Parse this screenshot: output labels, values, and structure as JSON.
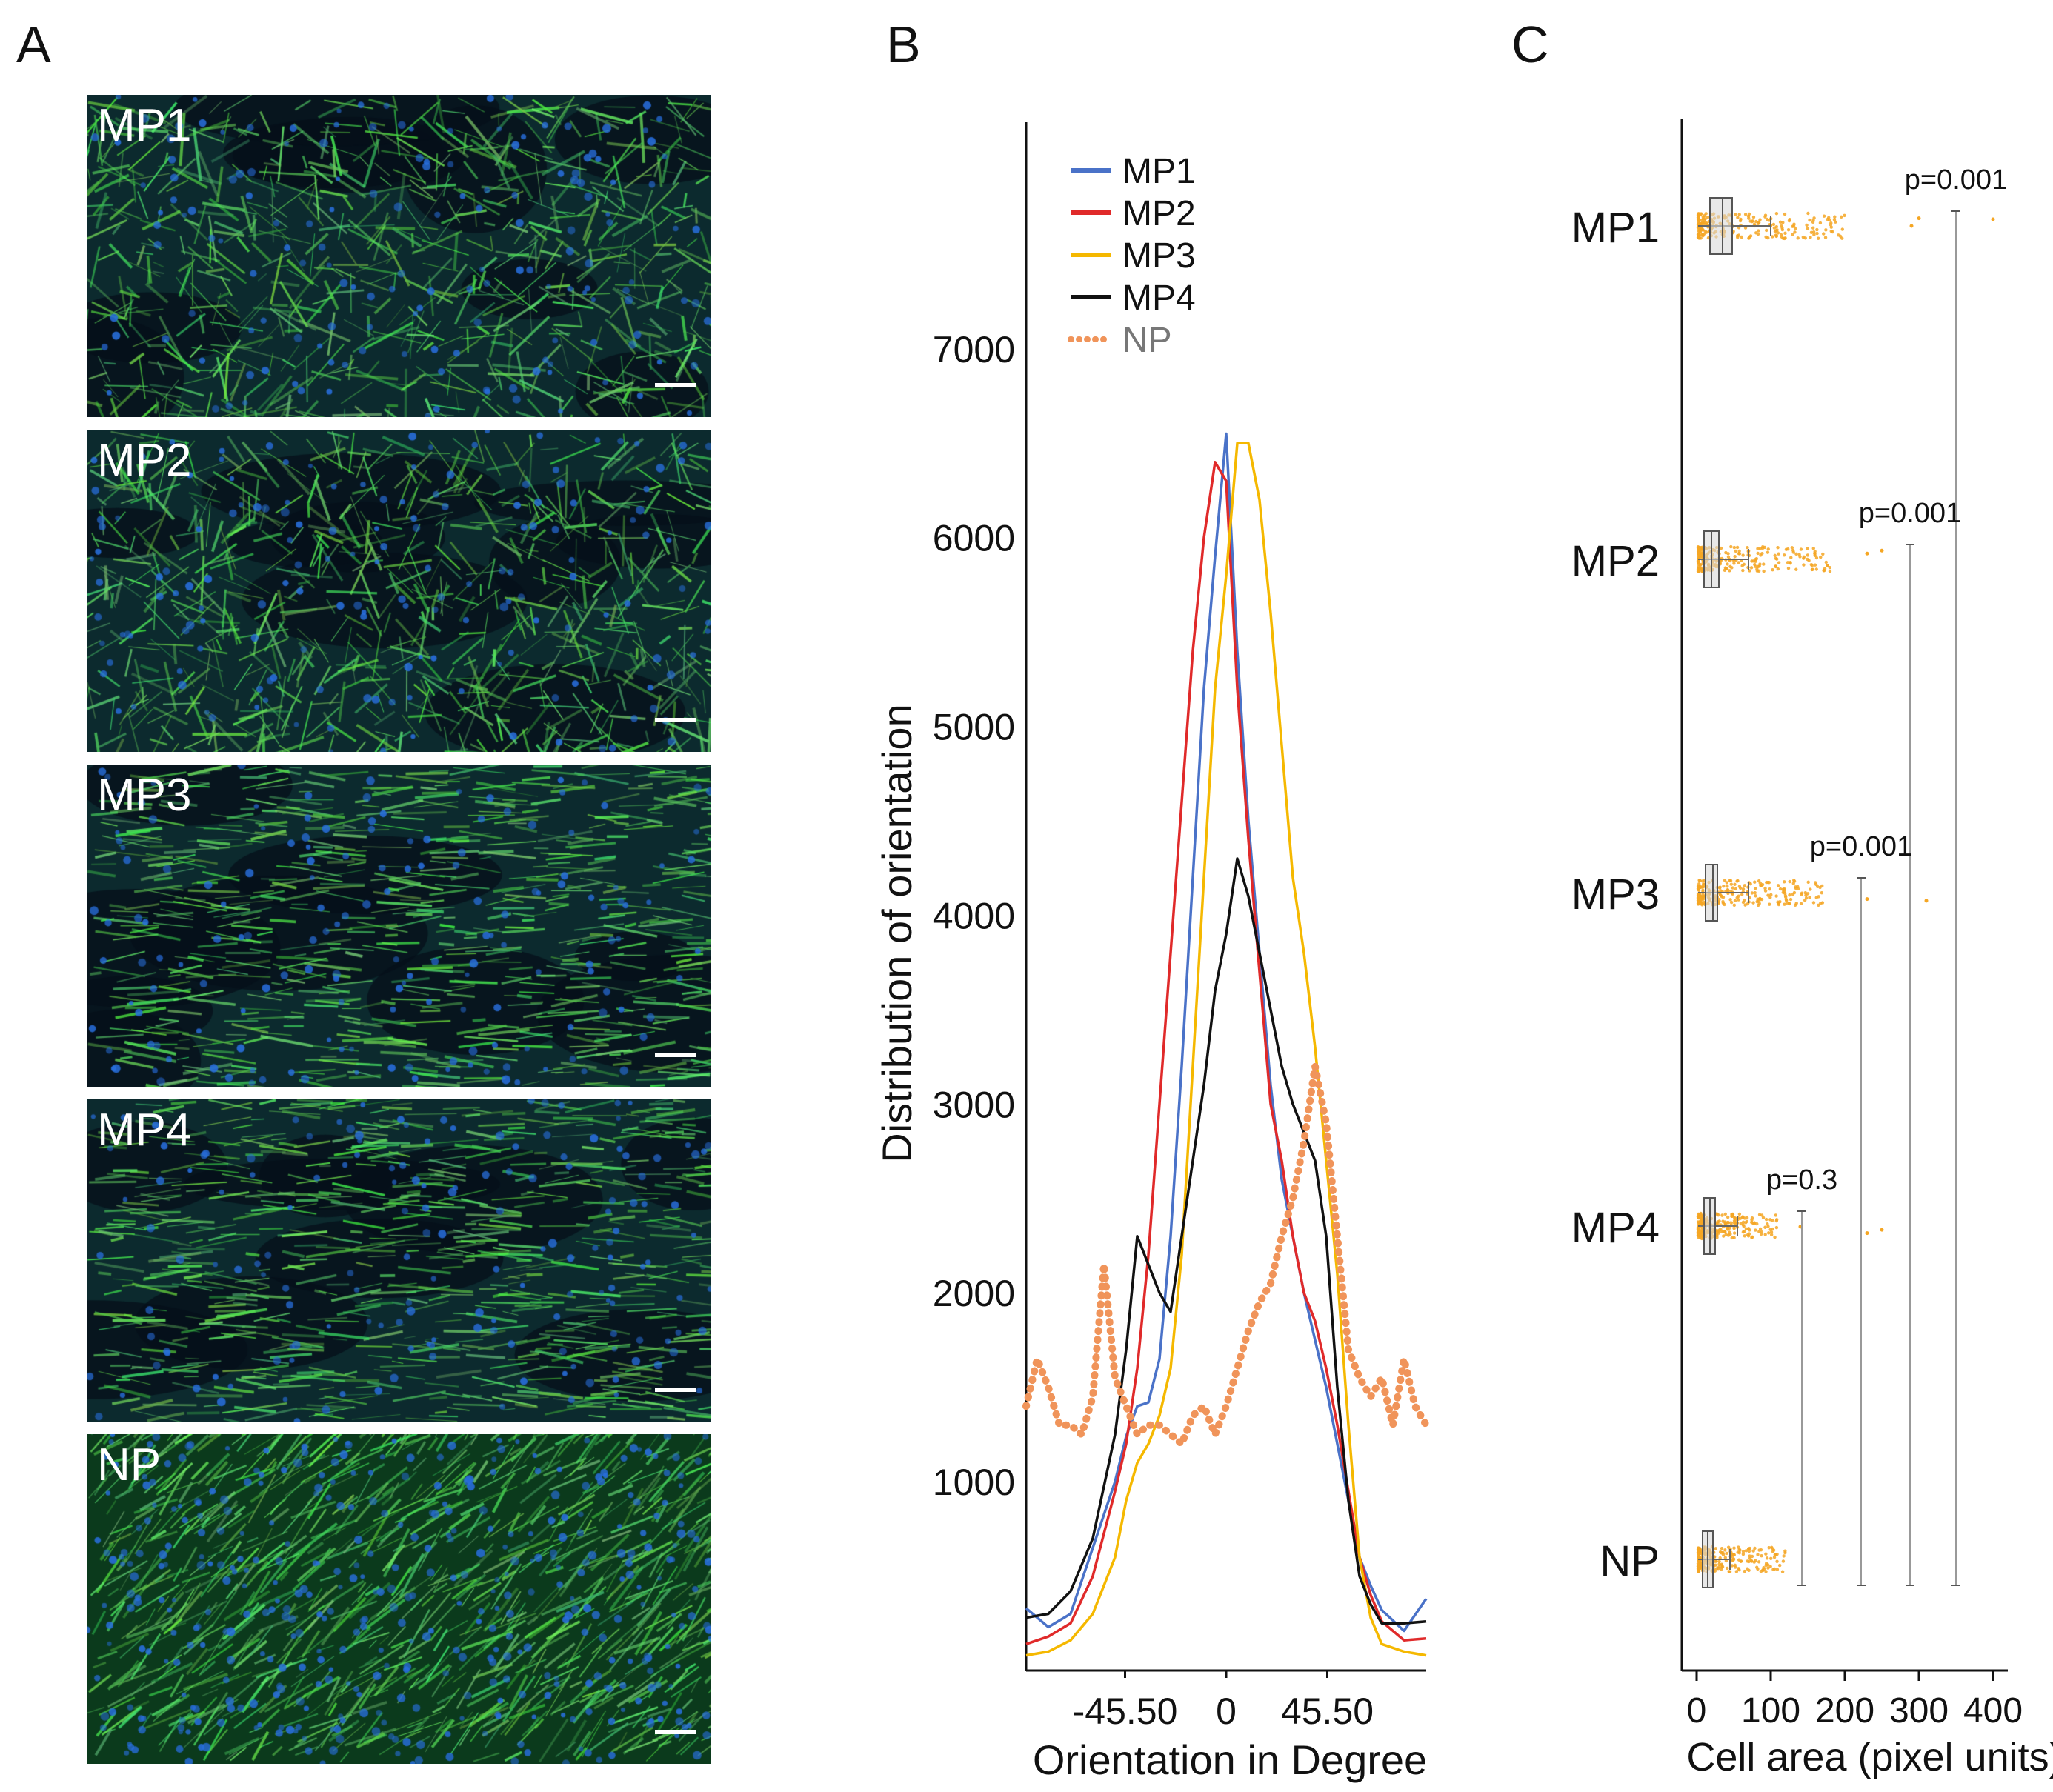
{
  "panels": {
    "a": "A",
    "b": "B",
    "c": "C"
  },
  "micrographs": [
    {
      "label": "MP1",
      "style": "network"
    },
    {
      "label": "MP2",
      "style": "network"
    },
    {
      "label": "MP3",
      "style": "aligned"
    },
    {
      "label": "MP4",
      "style": "aligned"
    },
    {
      "label": "NP",
      "style": "dense"
    }
  ],
  "colors": {
    "MP1": "#4a72c8",
    "MP2": "#e02a2a",
    "MP3": "#f5b800",
    "MP4": "#111111",
    "NP": "#f0945a",
    "points": "#f5a623",
    "box": "#999999",
    "axis": "#111111"
  },
  "chart_data": [
    {
      "type": "line",
      "xlabel": "Orientation in Degree",
      "ylabel": "Distribution of orientation",
      "xlim": [
        -90,
        90
      ],
      "ylim": [
        0,
        8200
      ],
      "x_ticks": [
        -45.5,
        0,
        45.5
      ],
      "x_tick_labels": [
        "-45.50",
        "0",
        "45.50"
      ],
      "y_ticks": [
        1000,
        2000,
        3000,
        4000,
        5000,
        6000,
        7000
      ],
      "y_tick_labels": [
        "1000",
        "2000",
        "3000",
        "4000",
        "5000",
        "6000",
        "7000"
      ],
      "legend_position": "top-left",
      "series": [
        {
          "name": "MP1",
          "style": "solid",
          "x": [
            -90,
            -80,
            -70,
            -60,
            -50,
            -45,
            -40,
            -35,
            -30,
            -25,
            -20,
            -15,
            -10,
            -5,
            0,
            5,
            10,
            15,
            20,
            25,
            30,
            35,
            40,
            45,
            50,
            55,
            60,
            65,
            70,
            80,
            90
          ],
          "y": [
            330,
            230,
            300,
            650,
            1000,
            1240,
            1400,
            1420,
            1650,
            2300,
            3200,
            4200,
            5200,
            5900,
            6550,
            5400,
            4500,
            3800,
            3100,
            2600,
            2300,
            2000,
            1750,
            1500,
            1200,
            900,
            600,
            450,
            320,
            210,
            380
          ]
        },
        {
          "name": "MP2",
          "style": "solid",
          "x": [
            -90,
            -80,
            -70,
            -60,
            -50,
            -45,
            -40,
            -35,
            -30,
            -25,
            -20,
            -15,
            -10,
            -5,
            0,
            5,
            10,
            15,
            20,
            25,
            30,
            35,
            40,
            45,
            50,
            55,
            60,
            65,
            70,
            80,
            90
          ],
          "y": [
            140,
            180,
            250,
            500,
            950,
            1200,
            1600,
            2200,
            3000,
            3800,
            4600,
            5400,
            6000,
            6400,
            6300,
            5200,
            4400,
            3700,
            3000,
            2700,
            2300,
            2000,
            1850,
            1600,
            1300,
            950,
            600,
            400,
            260,
            160,
            170
          ]
        },
        {
          "name": "MP3",
          "style": "solid",
          "x": [
            -90,
            -80,
            -70,
            -60,
            -50,
            -45,
            -40,
            -35,
            -30,
            -25,
            -20,
            -15,
            -10,
            -5,
            0,
            5,
            10,
            15,
            20,
            25,
            30,
            35,
            40,
            45,
            50,
            55,
            60,
            65,
            70,
            80,
            90
          ],
          "y": [
            80,
            100,
            160,
            300,
            600,
            900,
            1100,
            1200,
            1350,
            1600,
            2200,
            3200,
            4200,
            5200,
            5800,
            6500,
            6500,
            6200,
            5600,
            4900,
            4200,
            3800,
            3300,
            2700,
            2100,
            1300,
            600,
            280,
            140,
            100,
            80
          ]
        },
        {
          "name": "MP4",
          "style": "solid",
          "x": [
            -90,
            -80,
            -70,
            -60,
            -50,
            -45,
            -40,
            -35,
            -30,
            -25,
            -20,
            -15,
            -10,
            -5,
            0,
            5,
            10,
            15,
            20,
            25,
            30,
            35,
            40,
            45,
            50,
            55,
            60,
            65,
            70,
            80,
            90
          ],
          "y": [
            280,
            300,
            420,
            700,
            1250,
            1700,
            2300,
            2150,
            2000,
            1900,
            2300,
            2700,
            3100,
            3600,
            3900,
            4300,
            4100,
            3800,
            3500,
            3200,
            3000,
            2850,
            2700,
            2300,
            1500,
            900,
            500,
            350,
            250,
            250,
            260
          ]
        },
        {
          "name": "NP",
          "style": "dotted",
          "x": [
            -90,
            -85,
            -80,
            -75,
            -70,
            -65,
            -60,
            -55,
            -50,
            -45,
            -40,
            -35,
            -30,
            -25,
            -20,
            -15,
            -10,
            -5,
            0,
            5,
            10,
            15,
            20,
            25,
            30,
            35,
            40,
            45,
            50,
            55,
            60,
            65,
            70,
            75,
            80,
            85,
            90
          ],
          "y": [
            1400,
            1650,
            1500,
            1300,
            1300,
            1250,
            1450,
            2150,
            1550,
            1400,
            1250,
            1300,
            1300,
            1250,
            1200,
            1350,
            1400,
            1250,
            1400,
            1600,
            1800,
            1950,
            2050,
            2300,
            2500,
            2800,
            3200,
            2900,
            2300,
            1700,
            1550,
            1450,
            1550,
            1300,
            1650,
            1400,
            1300
          ]
        }
      ]
    },
    {
      "type": "box",
      "xlabel": "Cell area (pixel units)",
      "ylabel": "",
      "xlim": [
        -20,
        420
      ],
      "x_ticks": [
        0,
        100,
        200,
        300,
        400
      ],
      "x_tick_labels": [
        "0",
        "100",
        "200",
        "300",
        "400"
      ],
      "categories": [
        "MP1",
        "MP2",
        "MP3",
        "MP4",
        "NP"
      ],
      "boxes": [
        {
          "name": "MP1",
          "q1": 18,
          "median": 35,
          "q3": 48,
          "whisker_low": 2,
          "whisker_high": 100,
          "points_max": 200,
          "outliers": [
            290,
            300,
            400
          ]
        },
        {
          "name": "MP2",
          "q1": 10,
          "median": 20,
          "q3": 30,
          "whisker_low": 2,
          "whisker_high": 70,
          "points_max": 180,
          "outliers": [
            230,
            250
          ]
        },
        {
          "name": "MP3",
          "q1": 12,
          "median": 22,
          "q3": 28,
          "whisker_low": 2,
          "whisker_high": 70,
          "points_max": 170,
          "outliers": [
            230,
            310
          ]
        },
        {
          "name": "MP4",
          "q1": 10,
          "median": 18,
          "q3": 25,
          "whisker_low": 2,
          "whisker_high": 55,
          "points_max": 110,
          "outliers": [
            140,
            230,
            250
          ]
        },
        {
          "name": "NP",
          "q1": 8,
          "median": 15,
          "q3": 22,
          "whisker_low": 2,
          "whisker_high": 45,
          "points_max": 120,
          "outliers": []
        }
      ],
      "comparisons": [
        {
          "label": "p=0.001",
          "from": "MP1",
          "to": "NP",
          "x_value": 350
        },
        {
          "label": "p=0.001",
          "from": "MP2",
          "to": "NP",
          "x_value": 288
        },
        {
          "label": "p=0.001",
          "from": "MP3",
          "to": "NP",
          "x_value": 222
        },
        {
          "label": "p=0.3",
          "from": "MP4",
          "to": "NP",
          "x_value": 142
        }
      ]
    }
  ]
}
